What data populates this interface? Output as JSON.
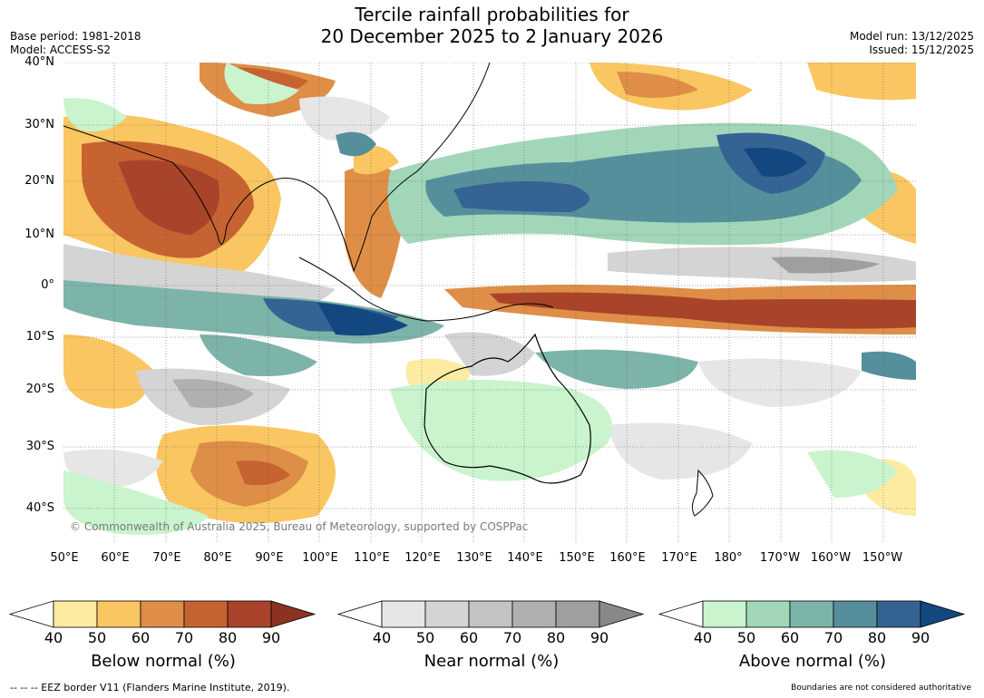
{
  "title_line1": "Tercile rainfall probabilities for",
  "title_line2": "20 December 2025 to 2 January 2026",
  "base_period": "Base period: 1981-2018",
  "model": "Model: ACCESS-S2",
  "model_run": "Model run: 13/12/2025",
  "issued": "Issued: 15/12/2025",
  "lat_labels": [
    "40°N",
    "30°N",
    "20°N",
    "10°N",
    "0°",
    "10°S",
    "20°S",
    "30°S",
    "40°S"
  ],
  "lon_labels": [
    "50°E",
    "60°E",
    "70°E",
    "80°E",
    "90°E",
    "100°E",
    "110°E",
    "120°E",
    "130°E",
    "140°E",
    "150°E",
    "160°E",
    "170°E",
    "180°",
    "170°W",
    "160°W",
    "150°W"
  ],
  "copyright": "© Commonwealth of Australia 2025, Bureau of Meteorology, supported by COSPPac",
  "colorbars": [
    {
      "title": "Below normal (%)",
      "ticks": [
        "40",
        "50",
        "60",
        "70",
        "80",
        "90"
      ],
      "colors": [
        "#ffffff",
        "#fdeba2",
        "#f9c661",
        "#de8e46",
        "#c76331",
        "#a9442a",
        "#8b3321"
      ]
    },
    {
      "title": "Near normal (%)",
      "ticks": [
        "40",
        "50",
        "60",
        "70",
        "80",
        "90"
      ],
      "colors": [
        "#ffffff",
        "#e6e6e6",
        "#d4d4d4",
        "#c3c3c3",
        "#b0b0b0",
        "#9f9f9f",
        "#888888"
      ]
    },
    {
      "title": "Above normal (%)",
      "ticks": [
        "40",
        "50",
        "60",
        "70",
        "80",
        "90"
      ],
      "colors": [
        "#ffffff",
        "#c9f4cd",
        "#a2d6b9",
        "#7db4a9",
        "#568f9c",
        "#346394",
        "#13477f"
      ]
    }
  ],
  "eez_note": "--  --  -- EEZ border V11 (Flanders Marine Institute, 2019).",
  "boundary_note": "Boundaries are not considered authoritative"
}
